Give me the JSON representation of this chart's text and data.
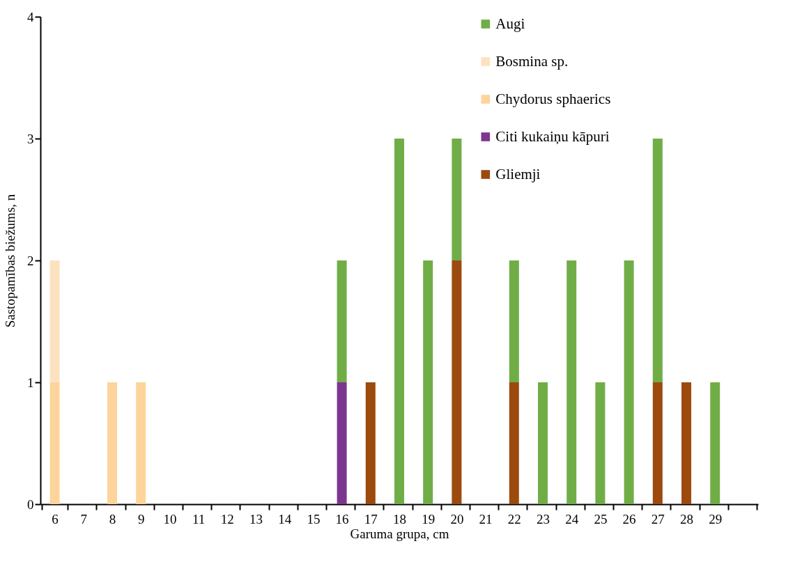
{
  "chart_data": {
    "type": "bar",
    "stacked": true,
    "xlabel": "Garuma grupa, cm",
    "ylabel": "Sastopamības biežums, n",
    "categories": [
      "6",
      "7",
      "8",
      "9",
      "10",
      "11",
      "12",
      "13",
      "14",
      "15",
      "16",
      "17",
      "18",
      "19",
      "20",
      "21",
      "22",
      "23",
      "24",
      "25",
      "26",
      "27",
      "28",
      "29",
      null
    ],
    "series": [
      {
        "name": "Gliemji",
        "color": "#9c4a0e",
        "values": [
          null,
          null,
          null,
          null,
          null,
          null,
          null,
          null,
          null,
          null,
          null,
          1,
          null,
          null,
          2,
          null,
          1,
          null,
          null,
          null,
          null,
          1,
          1,
          null,
          null
        ]
      },
      {
        "name": "Citi kukaiņu kāpuri",
        "color": "#7d3690",
        "values": [
          null,
          null,
          null,
          null,
          null,
          null,
          null,
          null,
          null,
          null,
          1,
          null,
          null,
          null,
          null,
          null,
          null,
          null,
          null,
          null,
          null,
          null,
          null,
          null,
          null
        ]
      },
      {
        "name": "Chydorus sphaerics",
        "color": "#fdd49b",
        "values": [
          1,
          null,
          1,
          1,
          null,
          null,
          null,
          null,
          null,
          null,
          null,
          null,
          null,
          null,
          null,
          null,
          null,
          null,
          null,
          null,
          null,
          null,
          null,
          null,
          null
        ]
      },
      {
        "name": "Bosmina sp.",
        "color": "#fde2bf",
        "values": [
          1,
          null,
          null,
          null,
          null,
          null,
          null,
          null,
          null,
          null,
          null,
          null,
          null,
          null,
          null,
          null,
          null,
          null,
          null,
          null,
          null,
          null,
          null,
          null,
          null
        ]
      },
      {
        "name": "Augi",
        "color": "#70ad47",
        "values": [
          null,
          null,
          null,
          null,
          null,
          null,
          null,
          null,
          null,
          null,
          1,
          null,
          3,
          2,
          1,
          null,
          1,
          1,
          2,
          1,
          2,
          2,
          null,
          1,
          null
        ]
      }
    ],
    "ylim": [
      0,
      4
    ],
    "yticks": [
      0,
      1,
      2,
      3,
      4
    ],
    "grid": false,
    "legend": "top right"
  }
}
